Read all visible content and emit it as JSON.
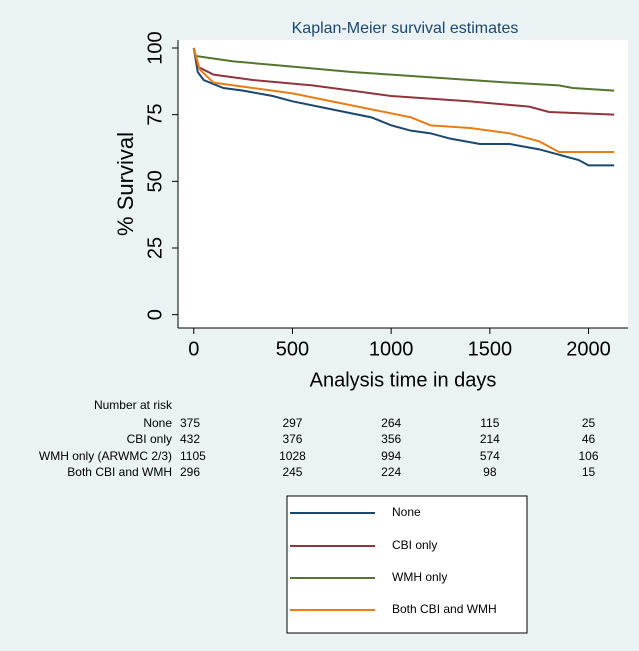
{
  "chart_data": {
    "type": "line",
    "title": "Kaplan-Meier survival estimates",
    "xlabel": "Analysis time in days",
    "ylabel": "% Survival",
    "xlim": [
      -80,
      2200
    ],
    "ylim": [
      -5,
      103
    ],
    "xticks": [
      0,
      500,
      1000,
      1500,
      2000
    ],
    "yticks": [
      0,
      25,
      50,
      75,
      100
    ],
    "series": [
      {
        "name": "None",
        "color": "#1a476f",
        "x": [
          0,
          20,
          50,
          150,
          250,
          400,
          500,
          700,
          900,
          1000,
          1100,
          1200,
          1300,
          1450,
          1600,
          1750,
          1850,
          1950,
          2000,
          2130
        ],
        "values": [
          100,
          91,
          88,
          85,
          84,
          82,
          80,
          77,
          74,
          71,
          69,
          68,
          66,
          64,
          64,
          62,
          60,
          58,
          56,
          56
        ]
      },
      {
        "name": "CBI only",
        "color": "#90353b",
        "x": [
          0,
          20,
          100,
          300,
          600,
          800,
          1000,
          1400,
          1700,
          1800,
          2130
        ],
        "values": [
          100,
          93,
          90,
          88,
          86,
          84,
          82,
          80,
          78,
          76,
          75
        ]
      },
      {
        "name": "WMH only",
        "color": "#55752f",
        "x": [
          0,
          10,
          200,
          500,
          800,
          1000,
          1400,
          1600,
          1850,
          1920,
          2130
        ],
        "values": [
          100,
          97,
          95,
          93,
          91,
          90,
          88,
          87,
          86,
          85,
          84
        ]
      },
      {
        "name": "Both CBI and WMH",
        "color": "#e87d15",
        "x": [
          0,
          30,
          100,
          300,
          500,
          700,
          900,
          1100,
          1200,
          1400,
          1600,
          1750,
          1850,
          2130
        ],
        "values": [
          100,
          92,
          87,
          85,
          83,
          80,
          77,
          74,
          71,
          70,
          68,
          65,
          61,
          61
        ]
      }
    ],
    "risk_table": {
      "title": "Number at risk",
      "rows": [
        {
          "label": "None",
          "values": [
            375,
            297,
            264,
            115,
            25
          ]
        },
        {
          "label": "CBI only",
          "values": [
            432,
            376,
            356,
            214,
            46
          ]
        },
        {
          "label": "WMH only (ARWMC 2/3)",
          "values": [
            1105,
            1028,
            994,
            574,
            106
          ]
        },
        {
          "label": "Both CBI and WMH",
          "values": [
            296,
            245,
            224,
            98,
            15
          ]
        }
      ]
    }
  }
}
